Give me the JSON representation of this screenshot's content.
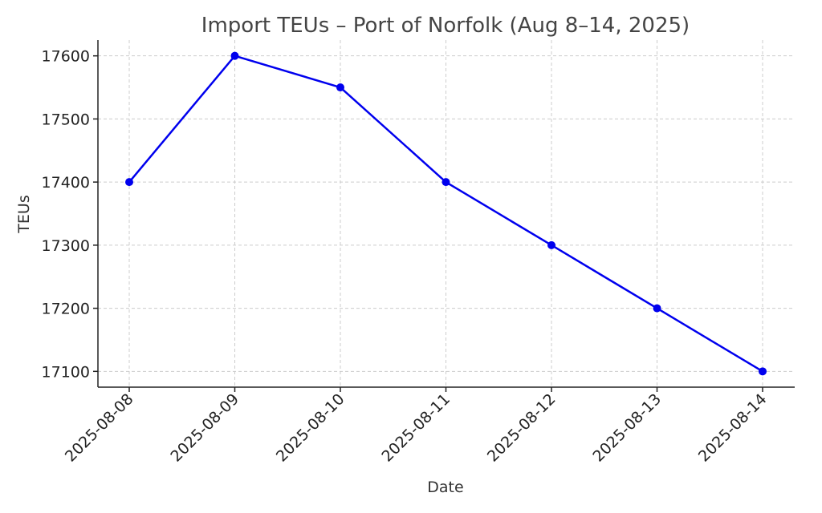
{
  "chart_data": {
    "type": "line",
    "title": "Import TEUs – Port of Norfolk (Aug 8–14, 2025)",
    "xlabel": "Date",
    "ylabel": "TEUs",
    "categories": [
      "2025-08-08",
      "2025-08-09",
      "2025-08-10",
      "2025-08-11",
      "2025-08-12",
      "2025-08-13",
      "2025-08-14"
    ],
    "series": [
      {
        "values": [
          17400,
          17600,
          17550,
          17400,
          17300,
          17200,
          17100
        ],
        "color": "#0000ee"
      }
    ],
    "ylim": [
      17075,
      17625
    ],
    "yticks": [
      17100,
      17200,
      17300,
      17400,
      17500,
      17600
    ],
    "grid": true,
    "legend": "none"
  }
}
